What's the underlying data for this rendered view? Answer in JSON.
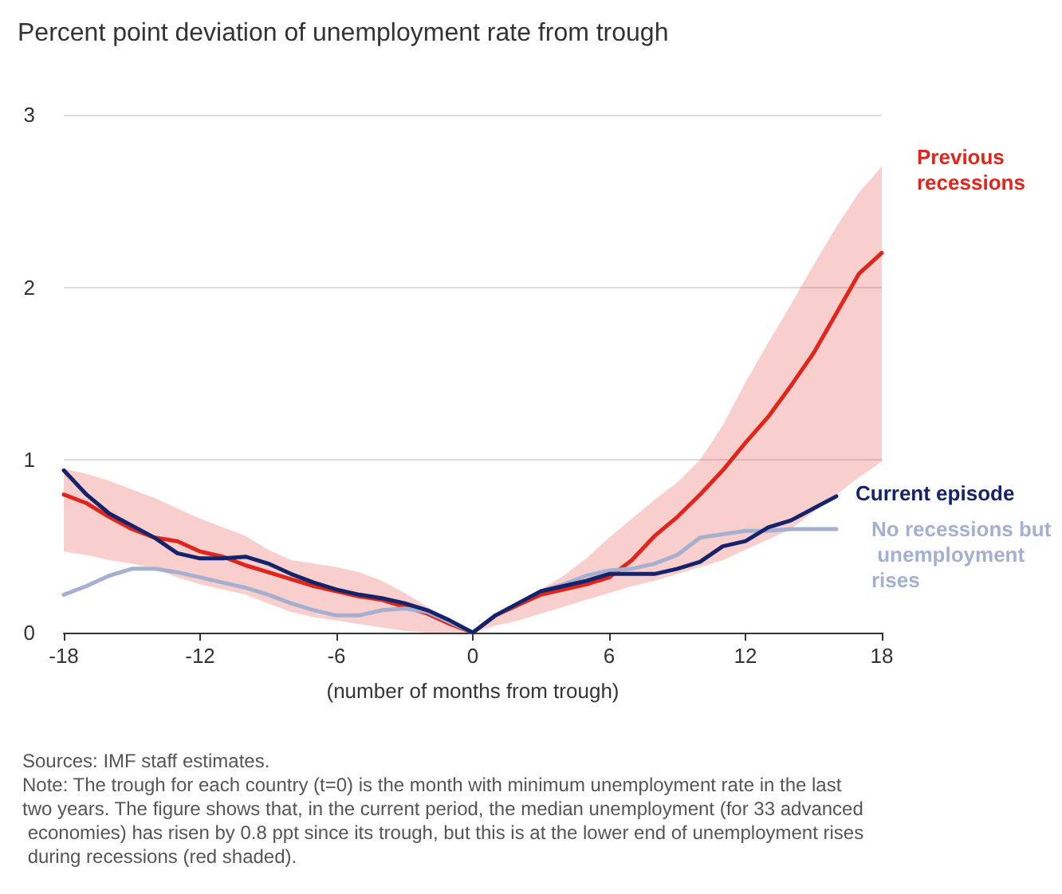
{
  "chart_data": {
    "type": "line",
    "title": "Percent point deviation of unemployment rate from trough",
    "xlabel": "(number of months from trough)",
    "xlim": [
      -18,
      18
    ],
    "xticks": [
      -18,
      -12,
      -6,
      0,
      6,
      12,
      18
    ],
    "ylim": [
      0,
      3
    ],
    "yticks": [
      0,
      1,
      2,
      3
    ],
    "grid": "y",
    "legend": false,
    "marker": "none",
    "line_style": "solid",
    "series": [
      {
        "name": "Previous recessions",
        "color": "#e0251b",
        "x": [
          -18,
          -17,
          -16,
          -15,
          -14,
          -13,
          -12,
          -11,
          -10,
          -9,
          -8,
          -7,
          -6,
          -5,
          -4,
          -3,
          -2,
          -1,
          0,
          1,
          2,
          3,
          4,
          5,
          6,
          7,
          8,
          9,
          10,
          11,
          12,
          13,
          14,
          15,
          16,
          17,
          18
        ],
        "values": [
          0.8,
          0.75,
          0.67,
          0.6,
          0.55,
          0.53,
          0.47,
          0.44,
          0.39,
          0.35,
          0.31,
          0.27,
          0.24,
          0.21,
          0.19,
          0.15,
          0.11,
          0.05,
          0,
          0.1,
          0.16,
          0.22,
          0.25,
          0.28,
          0.32,
          0.42,
          0.56,
          0.67,
          0.8,
          0.94,
          1.1,
          1.25,
          1.43,
          1.62,
          1.85,
          2.08,
          2.2
        ],
        "lower": [
          0.47,
          0.45,
          0.42,
          0.4,
          0.37,
          0.32,
          0.28,
          0.25,
          0.22,
          0.17,
          0.12,
          0.09,
          0.07,
          0.05,
          0.03,
          0.01,
          0,
          0,
          0,
          0.04,
          0.07,
          0.11,
          0.15,
          0.19,
          0.23,
          0.27,
          0.3,
          0.34,
          0.38,
          0.42,
          0.48,
          0.54,
          0.6,
          0.7,
          0.8,
          0.9,
          0.99
        ],
        "upper": [
          0.95,
          0.92,
          0.88,
          0.83,
          0.78,
          0.72,
          0.66,
          0.61,
          0.56,
          0.48,
          0.42,
          0.4,
          0.38,
          0.35,
          0.3,
          0.23,
          0.15,
          0.07,
          0,
          0.1,
          0.18,
          0.25,
          0.33,
          0.43,
          0.55,
          0.66,
          0.77,
          0.87,
          1.0,
          1.2,
          1.45,
          1.68,
          1.9,
          2.13,
          2.35,
          2.55,
          2.7
        ]
      },
      {
        "name": "No recessions but unemployment rises",
        "color": "#a5b0d0",
        "x": [
          -18,
          -17,
          -16,
          -15,
          -14,
          -13,
          -12,
          -11,
          -10,
          -9,
          -8,
          -7,
          -6,
          -5,
          -4,
          -3,
          -2,
          -1,
          0,
          1,
          2,
          3,
          4,
          5,
          6,
          7,
          8,
          9,
          10,
          11,
          12,
          13,
          14,
          15,
          16
        ],
        "values": [
          0.22,
          0.27,
          0.33,
          0.37,
          0.37,
          0.35,
          0.32,
          0.29,
          0.26,
          0.22,
          0.17,
          0.13,
          0.1,
          0.1,
          0.13,
          0.14,
          0.12,
          0.06,
          0,
          0.1,
          0.17,
          0.24,
          0.28,
          0.33,
          0.36,
          0.37,
          0.4,
          0.45,
          0.55,
          0.57,
          0.59,
          0.59,
          0.6,
          0.6,
          0.6
        ]
      },
      {
        "name": "Current episode",
        "color": "#14236b",
        "x": [
          -18,
          -17,
          -16,
          -15,
          -14,
          -13,
          -12,
          -11,
          -10,
          -9,
          -8,
          -7,
          -6,
          -5,
          -4,
          -3,
          -2,
          -1,
          0,
          1,
          2,
          3,
          4,
          5,
          6,
          7,
          8,
          9,
          10,
          11,
          12,
          13,
          14,
          15,
          16
        ],
        "values": [
          0.94,
          0.8,
          0.69,
          0.62,
          0.55,
          0.46,
          0.43,
          0.43,
          0.44,
          0.4,
          0.34,
          0.29,
          0.25,
          0.22,
          0.2,
          0.17,
          0.13,
          0.07,
          0,
          0.1,
          0.17,
          0.24,
          0.27,
          0.3,
          0.34,
          0.34,
          0.34,
          0.37,
          0.41,
          0.5,
          0.53,
          0.61,
          0.65,
          0.72,
          0.79
        ]
      }
    ],
    "annotations": [
      "Sources: IMF staff estimates.",
      "Note: The trough for each country (t=0) is the month with minimum unemployment rate in the last two years. The figure shows that, in the current period, the median unemployment (for 33 advanced economies) has risen by 0.8 ppt since its trough, but this is at the lower end of unemployment rises during recessions (red shaded)."
    ]
  }
}
